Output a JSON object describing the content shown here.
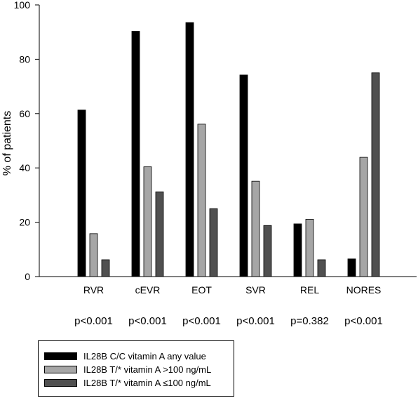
{
  "chart_data": {
    "type": "bar",
    "ylabel": "% of patients",
    "ylim": [
      0,
      100
    ],
    "yticks": [
      0,
      20,
      40,
      60,
      80,
      100
    ],
    "grid": false,
    "legend_position": "bottom-left",
    "categories": [
      "RVR",
      "cEVR",
      "EOT",
      "SVR",
      "REL",
      "NORES"
    ],
    "p_values": [
      "p<0.001",
      "p<0.001",
      "p<0.001",
      "p<0.001",
      "p=0.382",
      "p<0.001"
    ],
    "series": [
      {
        "name": "IL28B C/C vitamin A any value",
        "color": "#000000",
        "values": [
          61.3,
          90.3,
          93.5,
          74.2,
          19.4,
          6.5
        ]
      },
      {
        "name": "IL28B T/* vitamin A >100 ng/mL",
        "color": "#a6a6a6",
        "values": [
          15.8,
          40.4,
          56.1,
          35.1,
          21.1,
          43.9
        ]
      },
      {
        "name": "IL28B T/* vitamin A ≤100 ng/mL",
        "color": "#505050",
        "values": [
          6.2,
          31.2,
          25.0,
          18.8,
          6.2,
          75.0
        ]
      }
    ]
  }
}
